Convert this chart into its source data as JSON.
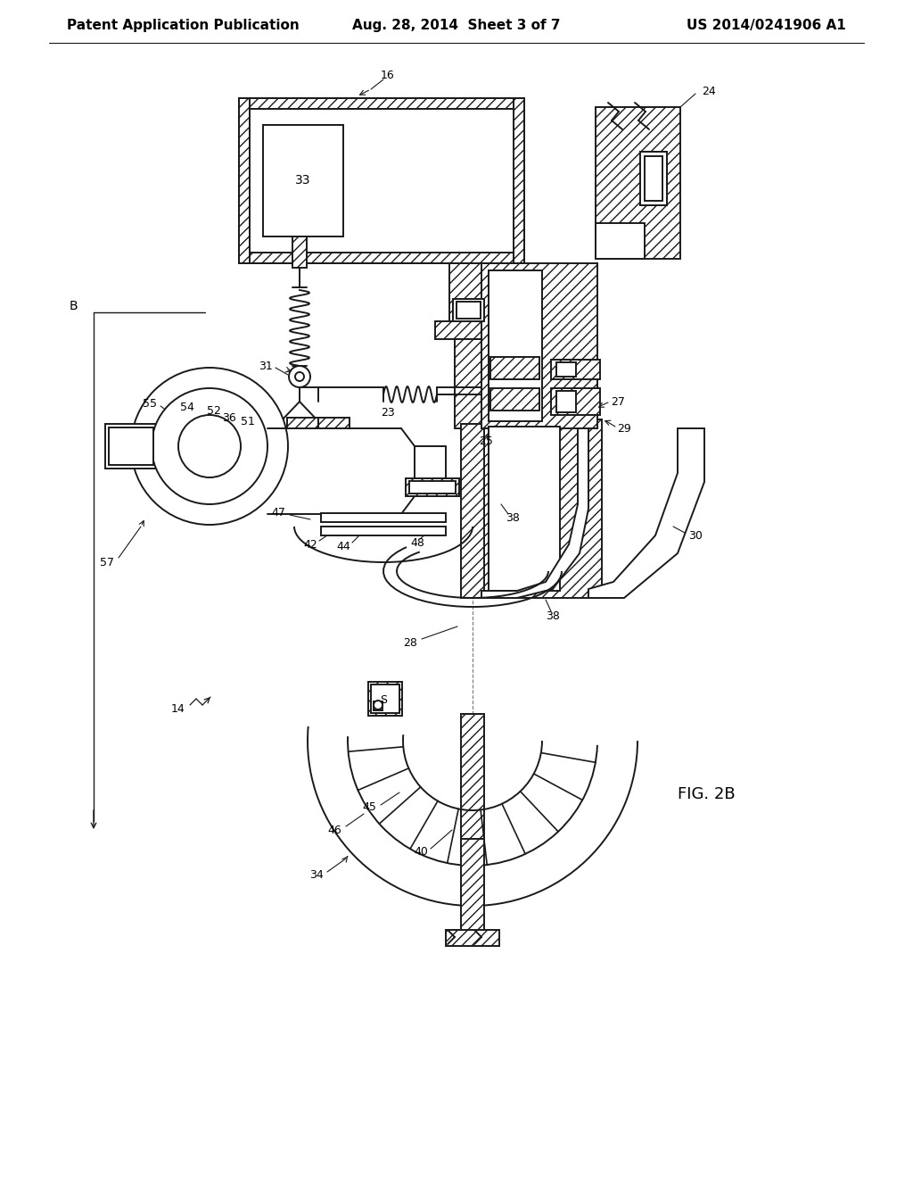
{
  "bg_color": "#ffffff",
  "line_color": "#1a1a1a",
  "header_left": "Patent Application Publication",
  "header_mid": "Aug. 28, 2014  Sheet 3 of 7",
  "header_right": "US 2014/0241906 A1",
  "fig_label": "FIG. 2B",
  "header_fontsize": 11,
  "label_fontsize": 9,
  "fig_label_fontsize": 13
}
